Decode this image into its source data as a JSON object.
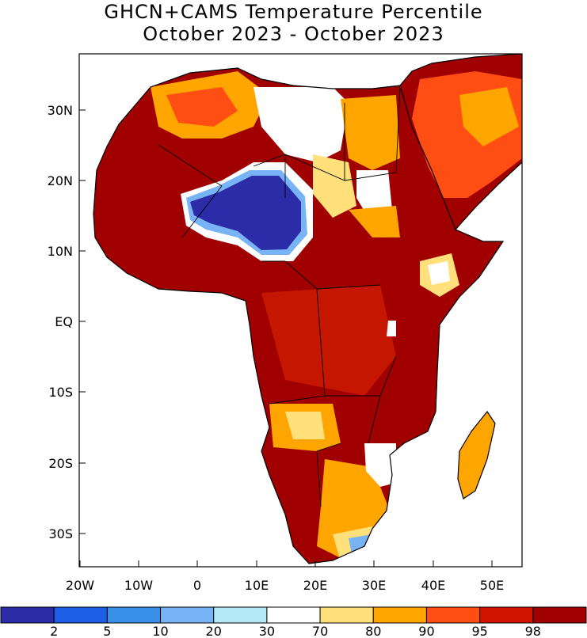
{
  "title_line1": "GHCN+CAMS Temperature Percentile",
  "title_line2": "October 2023 - October 2023",
  "lat_ticks": [
    "30N",
    "20N",
    "10N",
    "EQ",
    "10S",
    "20S",
    "30S"
  ],
  "lon_ticks": [
    "20W",
    "10W",
    "0",
    "10E",
    "20E",
    "30E",
    "40E",
    "50E"
  ],
  "colorbar": {
    "colors": [
      "#2c2ca8",
      "#1e5ee6",
      "#3a8fe8",
      "#78b4f5",
      "#b4eaf5",
      "#ffffff",
      "#ffe07a",
      "#ffa500",
      "#ff4e14",
      "#d01400",
      "#a00000"
    ],
    "labels": [
      "2",
      "5",
      "10",
      "20",
      "30",
      "70",
      "80",
      "90",
      "95",
      "98"
    ]
  },
  "colors": {
    "dark_red": "#a00000",
    "red": "#c41600",
    "orange_red": "#ff4e14",
    "orange": "#ffa500",
    "yellow": "#ffe07a",
    "blue": "#2c2ca8",
    "mid_blue": "#1e5ee6",
    "light_blue": "#b4eaf5"
  }
}
